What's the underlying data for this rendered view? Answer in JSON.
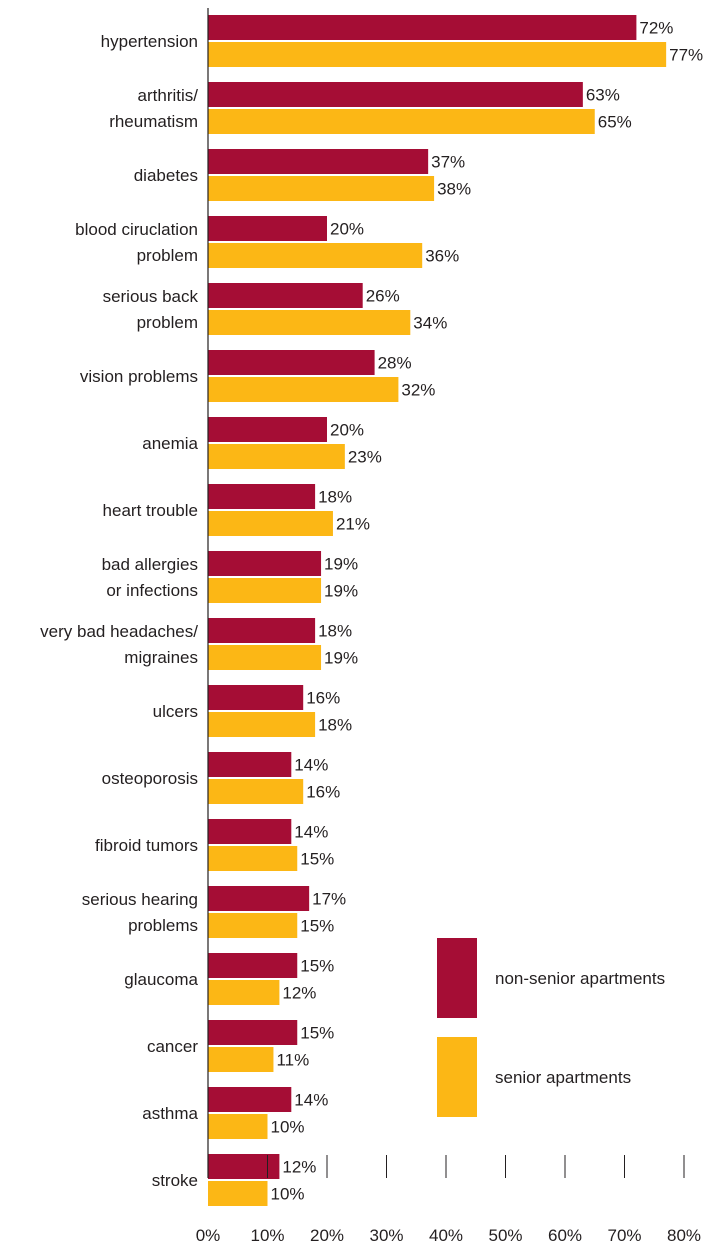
{
  "chart_data": {
    "type": "bar",
    "orientation": "horizontal",
    "categories": [
      [
        "hypertension"
      ],
      [
        "arthritis/",
        "rheumatism"
      ],
      [
        "diabetes"
      ],
      [
        "blood ciruclation",
        "problem"
      ],
      [
        "serious back",
        "problem"
      ],
      [
        "vision problems"
      ],
      [
        "anemia"
      ],
      [
        "heart trouble"
      ],
      [
        "bad allergies",
        "or infections"
      ],
      [
        "very bad headaches/",
        "migraines"
      ],
      [
        "ulcers"
      ],
      [
        "osteoporosis"
      ],
      [
        "fibroid tumors"
      ],
      [
        "serious hearing",
        "problems"
      ],
      [
        "glaucoma"
      ],
      [
        "cancer"
      ],
      [
        "asthma"
      ],
      [
        "stroke"
      ]
    ],
    "series": [
      {
        "name": "non-senior apartments",
        "color": "#a50d35",
        "values": [
          72,
          63,
          37,
          20,
          26,
          28,
          20,
          18,
          19,
          18,
          16,
          14,
          14,
          17,
          15,
          15,
          14,
          12
        ],
        "labels": [
          "72%",
          "63%",
          "37%",
          "20%",
          "26%",
          "28%",
          "20%",
          "18%",
          "19%",
          "18%",
          "16%",
          "14%",
          "14%",
          "17%",
          "15%",
          "15%",
          "14%",
          "12%"
        ]
      },
      {
        "name": "senior apartments",
        "color": "#fcb715",
        "values": [
          77,
          65,
          38,
          36,
          34,
          32,
          23,
          21,
          19,
          19,
          18,
          16,
          15,
          15,
          12,
          11,
          10,
          10
        ],
        "labels": [
          "77%",
          "65%",
          "38%",
          "36%",
          "34%",
          "32%",
          "23%",
          "21%",
          "19%",
          "19%",
          "18%",
          "16%",
          "15%",
          "15%",
          "12%",
          "11%",
          "10%",
          "10%"
        ]
      }
    ],
    "x_ticks": [
      0,
      10,
      20,
      30,
      40,
      50,
      60,
      70,
      80
    ],
    "x_tick_labels": [
      "0%",
      "10%",
      "20%",
      "30%",
      "40%",
      "50%",
      "60%",
      "70%",
      "80%"
    ],
    "xlim": [
      0,
      80
    ],
    "grid": false,
    "legend_position": "bottom-right",
    "title": "",
    "xlabel": "",
    "ylabel": ""
  }
}
